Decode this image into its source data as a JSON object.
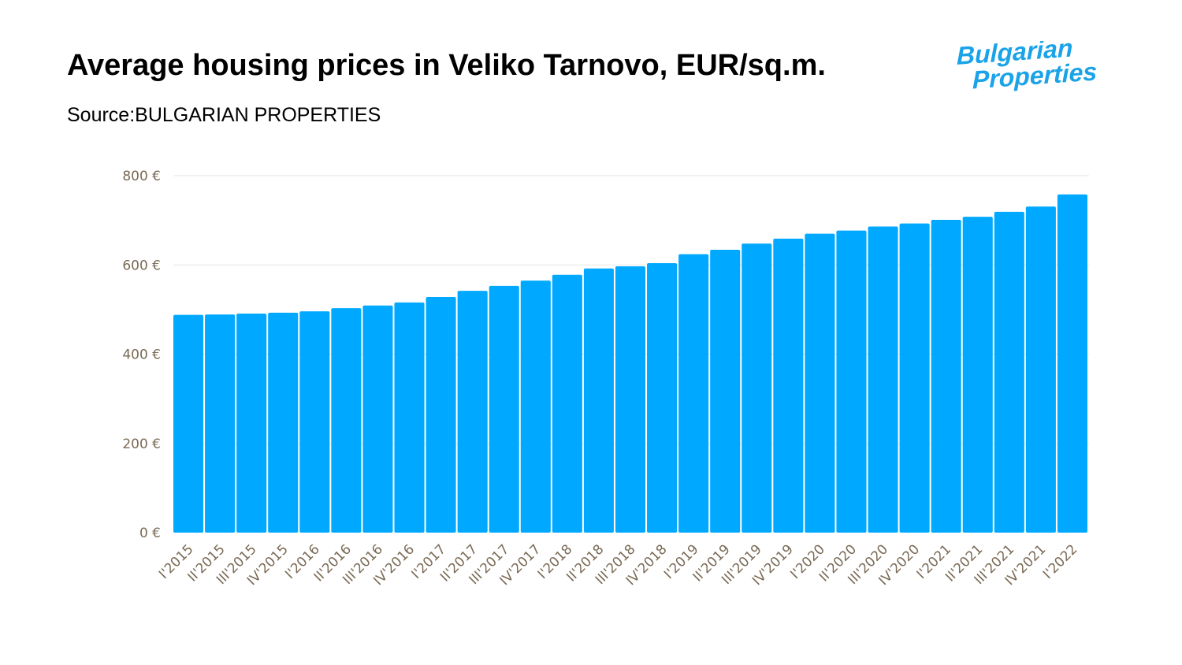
{
  "header": {
    "title": "Average housing prices in Veliko Tarnovo, EUR/sq.m.",
    "subtitle": "Source:BULGARIAN PROPERTIES",
    "logo_text": "Bulgarian Properties"
  },
  "colors": {
    "bar": "#00a9ff",
    "grid": "#e6e6e6",
    "tick": "#7a6a55",
    "logo": "#1aa3e8"
  },
  "chart_data": {
    "type": "bar",
    "title": "Average housing prices in Veliko Tarnovo, EUR/sq.m.",
    "subtitle": "Source:BULGARIAN PROPERTIES",
    "xlabel": "",
    "ylabel": "",
    "ylim": [
      0,
      800
    ],
    "yticks": [
      0,
      200,
      400,
      600,
      800
    ],
    "ytick_labels": [
      "0 €",
      "200 €",
      "400 €",
      "600 €",
      "800 €"
    ],
    "grid": true,
    "categories": [
      "I'2015",
      "II'2015",
      "III'2015",
      "IV'2015",
      "I'2016",
      "II'2016",
      "III'2016",
      "IV'2016",
      "I'2017",
      "II'2017",
      "III'2017",
      "IV'2017",
      "I'2018",
      "II'2018",
      "III'2018",
      "IV'2018",
      "I'2019",
      "II'2019",
      "III'2019",
      "IV'2019",
      "I'2020",
      "II'2020",
      "III'2020",
      "IV'2020",
      "I'2021",
      "II'2021",
      "III'2021",
      "IV'2021",
      "I'2022"
    ],
    "values": [
      488,
      489,
      491,
      493,
      496,
      503,
      509,
      516,
      528,
      542,
      553,
      565,
      578,
      592,
      597,
      604,
      624,
      634,
      648,
      659,
      670,
      677,
      686,
      693,
      701,
      708,
      719,
      731,
      758
    ]
  }
}
